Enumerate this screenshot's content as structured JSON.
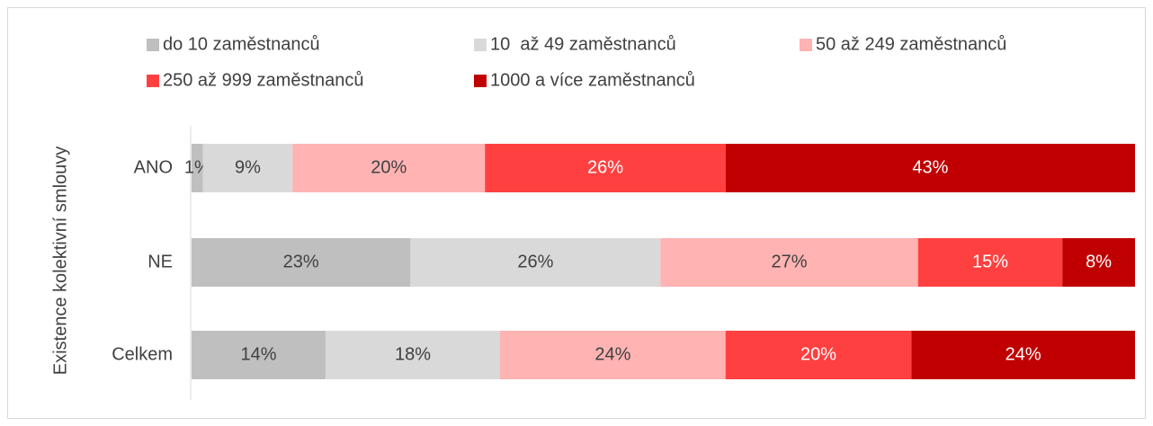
{
  "chart_data": {
    "type": "stacked-bar-horizontal",
    "y_label": "Existence kolektivní smlouvy",
    "categories": [
      "ANO",
      "NE",
      "Celkem"
    ],
    "xlim": [
      0,
      100
    ],
    "legend": "top",
    "series": [
      {
        "name": "do 10 zaměstnanců",
        "color": "#bfbfbf",
        "values": [
          1.2,
          23.2,
          14.2
        ],
        "value_labels": [
          "1%",
          "23%",
          "14%"
        ]
      },
      {
        "name": "10  až 49 zaměstnanců",
        "color": "#d9d9d9",
        "values": [
          9.5,
          26.5,
          18.5
        ],
        "value_labels": [
          "9%",
          "26%",
          "18%"
        ]
      },
      {
        "name": "50 až 249 zaměstnanců",
        "color": "#ffb3b3",
        "values": [
          20.4,
          27.3,
          23.9
        ],
        "value_labels": [
          "20%",
          "27%",
          "24%"
        ]
      },
      {
        "name": "250 až 999 zaměstnanců",
        "color": "#ff4040",
        "values": [
          25.5,
          15.3,
          19.7
        ],
        "value_labels": [
          "26%",
          "15%",
          "20%"
        ]
      },
      {
        "name": "1000 a více zaměstnanců",
        "color": "#c00000",
        "values": [
          43.4,
          7.7,
          23.7
        ],
        "value_labels": [
          "43%",
          "8%",
          "24%"
        ]
      }
    ]
  }
}
